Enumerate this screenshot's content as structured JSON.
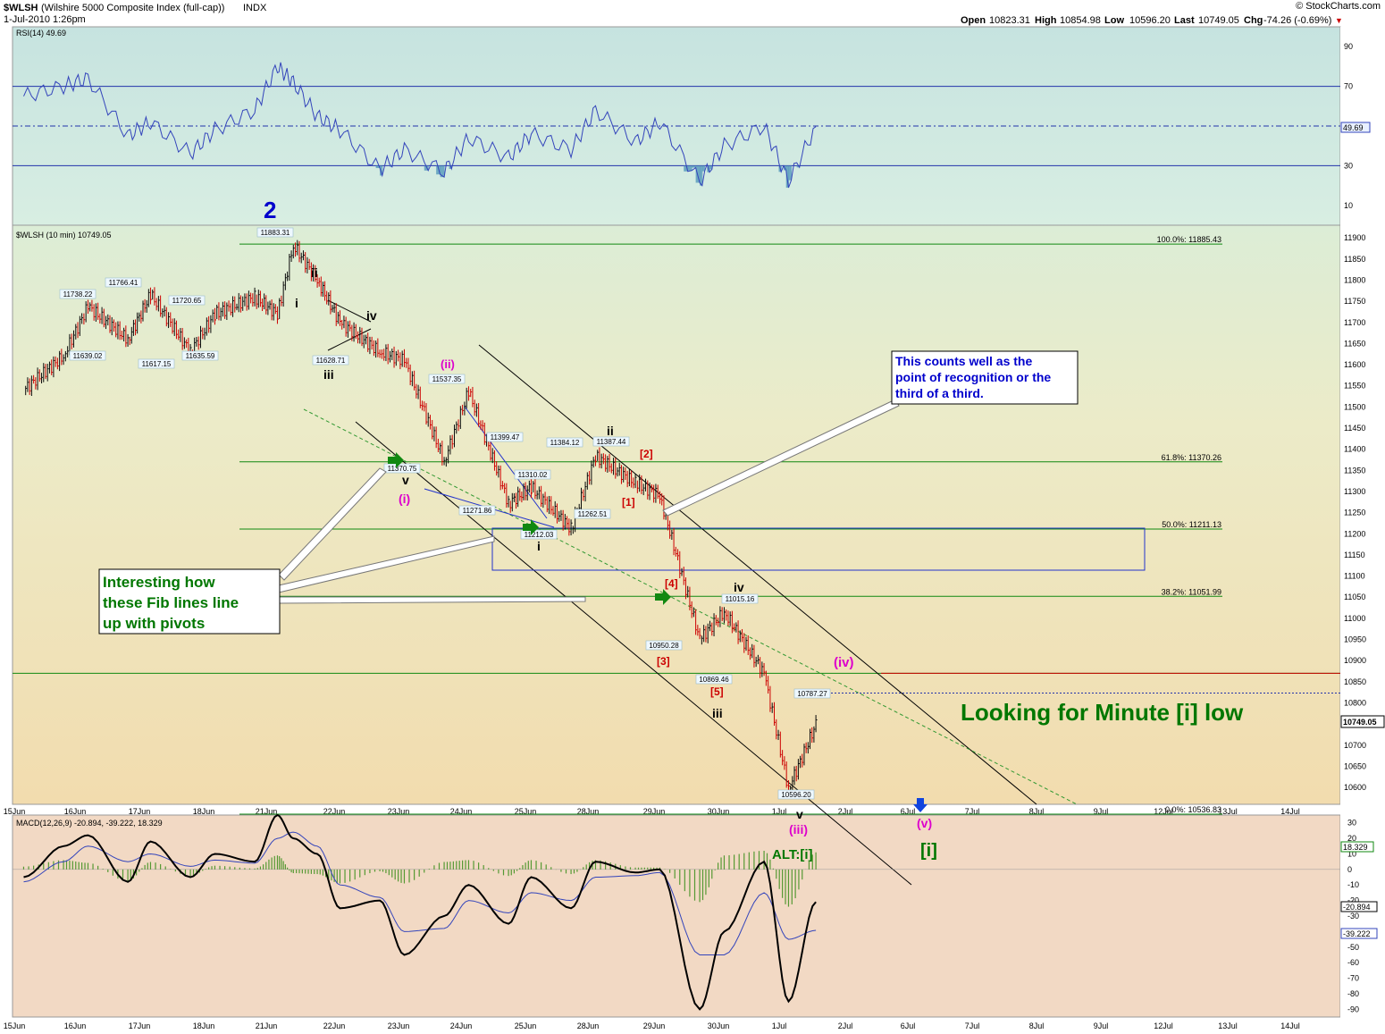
{
  "header": {
    "symbol": "$WLSH",
    "name": "(Wilshire 5000 Composite Index (full-cap))",
    "exchange": "INDX",
    "datetime": "1-Jul-2010 1:26pm",
    "copyright": "© StockCharts.com",
    "open_label": "Open",
    "open": "10823.31",
    "high_label": "High",
    "high": "10854.98",
    "low_label": "Low",
    "low": "10596.20",
    "last_label": "Last",
    "last": "10749.05",
    "chg_label": "Chg",
    "chg": "-74.26 (-0.69%)"
  },
  "colors": {
    "up_bar": "#0a0a0a",
    "down_bar": "#cc0000",
    "rsi_line": "#3344bb",
    "fib_line": "#008800",
    "annotation_blue": "#0000cc",
    "annotation_green": "#007700",
    "annotation_magenta": "#dd00cc",
    "annotation_red": "#cc0000"
  },
  "chart_data": [
    {
      "type": "line",
      "id": "rsi",
      "title": "RSI(14) 49.69",
      "last_value": "49.69",
      "ylim": [
        0,
        100
      ],
      "y_ticks": [
        "90",
        "70",
        "50",
        "30",
        "10"
      ],
      "levels": [
        70,
        50,
        30
      ],
      "x": [
        "15 Jun 10:00",
        "15 Jun 15:00",
        "16 Jun 10:00",
        "16 Jun 15:00",
        "17 Jun 10:00",
        "17 Jun 15:00",
        "18 Jun 10:00",
        "18 Jun 15:00",
        "21 Jun 10:00",
        "21 Jun 12:00",
        "21 Jun 15:00",
        "22 Jun 10:00",
        "22 Jun 15:00",
        "23 Jun 10:00",
        "23 Jun 15:00",
        "24 Jun 10:00",
        "24 Jun 15:00",
        "25 Jun 10:00",
        "25 Jun 15:00",
        "28 Jun 10:00",
        "28 Jun 15:00",
        "29 Jun 10:00",
        "29 Jun 15:00",
        "30 Jun 10:00",
        "30 Jun 15:00",
        "1 Jul 10:00",
        "1 Jul 13:26"
      ],
      "values": [
        65,
        70,
        74,
        45,
        52,
        36,
        48,
        58,
        80,
        72,
        55,
        48,
        28,
        38,
        27,
        44,
        34,
        46,
        38,
        58,
        42,
        52,
        22,
        40,
        50,
        22,
        49.69
      ]
    },
    {
      "type": "bar",
      "id": "price",
      "title": "$WLSH (10 min) 10749.05",
      "last_value": "10749.05",
      "ylim": [
        10560,
        11930
      ],
      "y_ticks": [
        "11900",
        "11850",
        "11800",
        "11750",
        "11700",
        "11650",
        "11600",
        "11550",
        "11500",
        "11450",
        "11400",
        "11350",
        "11300",
        "11250",
        "11200",
        "11150",
        "11100",
        "11050",
        "11000",
        "10950",
        "10900",
        "10850",
        "10800",
        "10750",
        "10700",
        "10650",
        "10600"
      ],
      "x_ticks": [
        "15Jun",
        "16Jun",
        "17Jun",
        "18Jun",
        "21Jun",
        "22Jun",
        "23Jun",
        "24Jun",
        "25Jun",
        "28Jun",
        "29Jun",
        "30Jun",
        "1Jul",
        "2Jul",
        "6Jul",
        "7Jul",
        "8Jul",
        "9Jul",
        "12Jul",
        "13Jul",
        "14Jul"
      ],
      "x": [
        "15 Jun 10:00",
        "15 Jun 15:00",
        "16 Jun 10:00",
        "16 Jun 15:00",
        "17 Jun 10:00",
        "17 Jun 15:00",
        "18 Jun 10:00",
        "18 Jun 15:00",
        "21 Jun 10:00",
        "21 Jun 12:00",
        "21 Jun 15:00",
        "22 Jun 10:00",
        "22 Jun 15:00",
        "23 Jun 10:00",
        "23 Jun 15:00",
        "24 Jun 10:00",
        "24 Jun 15:00",
        "25 Jun 10:00",
        "25 Jun 15:00",
        "28 Jun 10:00",
        "28 Jun 15:00",
        "29 Jun 10:00",
        "29 Jun 15:00",
        "30 Jun 10:00",
        "30 Jun 15:00",
        "1 Jul 10:00",
        "1 Jul 13:26"
      ],
      "values": [
        11540,
        11620,
        11738,
        11660,
        11766,
        11630,
        11720,
        11760,
        11720,
        11883,
        11800,
        11700,
        11630,
        11610,
        11371,
        11537,
        11272,
        11310,
        11212,
        11384,
        11320,
        11290,
        10950,
        11015,
        10870,
        10596,
        10749
      ],
      "price_labels": [
        "11883.31",
        "11738.22",
        "11766.41",
        "11720.65",
        "11639.02",
        "11617.15",
        "11635.59",
        "11628.71",
        "11537.35",
        "11399.47",
        "11384.12",
        "11387.44",
        "11370.75",
        "11310.02",
        "11271.86",
        "11262.51",
        "11212.03",
        "11015.16",
        "10950.28",
        "10869.46",
        "10787.27",
        "10596.20"
      ],
      "fib_levels": [
        {
          "label": "100.0%: 11885.43",
          "value": 11885.43
        },
        {
          "label": "61.8%: 11370.26",
          "value": 11370.26
        },
        {
          "label": "50.0%: 11211.13",
          "value": 11211.13
        },
        {
          "label": "38.2%: 11051.99",
          "value": 11051.99
        },
        {
          "label": "0.0%: 10536.83",
          "value": 10536.83
        }
      ],
      "h_levels": [
        10870,
        10823.31
      ]
    },
    {
      "type": "line",
      "id": "macd",
      "title": "MACD(12,26,9) -20.894, -39.222, 18.329",
      "macd_label": "MACD(12,26,9)",
      "macd_value": "-20.894",
      "signal_value": "-39.222",
      "hist_value": "18.329",
      "ylim": [
        -95,
        35
      ],
      "y_ticks": [
        "30",
        "20",
        "10",
        "0",
        "-10",
        "-20",
        "-30",
        "-40",
        "-50",
        "-60",
        "-70",
        "-80",
        "-90"
      ],
      "x": [
        "15 Jun 10:00",
        "15 Jun 15:00",
        "16 Jun 10:00",
        "16 Jun 15:00",
        "17 Jun 10:00",
        "17 Jun 15:00",
        "18 Jun 10:00",
        "18 Jun 15:00",
        "21 Jun 10:00",
        "21 Jun 12:00",
        "21 Jun 15:00",
        "22 Jun 10:00",
        "22 Jun 15:00",
        "23 Jun 10:00",
        "23 Jun 15:00",
        "24 Jun 10:00",
        "24 Jun 15:00",
        "25 Jun 10:00",
        "25 Jun 15:00",
        "28 Jun 10:00",
        "28 Jun 15:00",
        "29 Jun 10:00",
        "29 Jun 15:00",
        "30 Jun 10:00",
        "30 Jun 15:00",
        "1 Jul 10:00",
        "1 Jul 13:26"
      ],
      "series": [
        {
          "name": "MACD(12,26,9)",
          "values": [
            -5,
            15,
            22,
            -8,
            18,
            -5,
            10,
            5,
            35,
            20,
            10,
            -25,
            -20,
            -55,
            -30,
            -10,
            -35,
            -5,
            -25,
            5,
            -2,
            0,
            -90,
            -40,
            5,
            -85,
            -20.894
          ]
        },
        {
          "name": "Signal",
          "values": [
            -8,
            5,
            15,
            5,
            10,
            2,
            6,
            4,
            20,
            24,
            15,
            -10,
            -18,
            -40,
            -38,
            -20,
            -28,
            -15,
            -20,
            -5,
            -4,
            -2,
            -55,
            -55,
            -15,
            -45,
            -39.222
          ]
        }
      ]
    }
  ],
  "price_axis_flags": {
    "rsi": "49.69",
    "price": "10749.05",
    "macd1": "18.329",
    "macd2": "-20.894",
    "macd3": "-39.222"
  },
  "waves": {
    "w2": "2",
    "i_top": "i",
    "ii_top": "ii",
    "iii_top": "iii",
    "iv_top": "iv",
    "v_mid": "v",
    "paren_i": "(i)",
    "paren_ii": "(ii)",
    "i_mid": "i",
    "ii_mid": "ii",
    "b2": "[2]",
    "b1": "[1]",
    "b4": "[4]",
    "b3": "[3]",
    "b5": "[5]",
    "iv_low": "iv",
    "iii_low": "iii",
    "v_low": "v",
    "paren_iii": "(iii)",
    "paren_iv": "(iv)",
    "paren_v": "(v)",
    "bracket_i": "[i]",
    "alt": "ALT:[i]"
  },
  "annotations": {
    "note1": [
      "Interesting how",
      "these Fib lines line",
      "up with pivots"
    ],
    "note2": [
      "This counts well as the",
      "point of recognition or the",
      "third of a third."
    ],
    "big": "Looking for Minute [i] low"
  }
}
